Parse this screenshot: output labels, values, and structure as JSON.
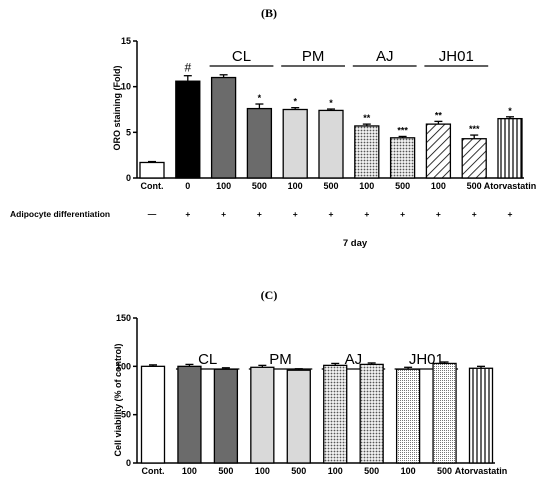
{
  "chart_data": [
    {
      "panel_label": "(B)",
      "type": "bar",
      "categories": [
        "Cont.",
        "0",
        "100",
        "500",
        "100",
        "500",
        "100",
        "500",
        "100",
        "500",
        "Atorvastatin"
      ],
      "values": [
        1.7,
        10.6,
        11.0,
        7.6,
        7.5,
        7.4,
        5.7,
        4.4,
        5.9,
        4.3,
        6.5
      ],
      "errors": [
        0.1,
        0.6,
        0.3,
        0.5,
        0.2,
        0.15,
        0.2,
        0.15,
        0.3,
        0.4,
        0.2
      ],
      "significance": [
        "",
        "#",
        "",
        "*",
        "*",
        "*",
        "**",
        "***",
        "**",
        "***",
        "*"
      ],
      "fills": [
        "white",
        "black",
        "darkgray",
        "darkgray",
        "lightgray",
        "lightgray",
        "dots",
        "dots",
        "diagonal",
        "diagonal",
        "vertical"
      ],
      "groups": [
        {
          "label": "CL",
          "first": 2,
          "last": 3
        },
        {
          "label": "PM",
          "first": 4,
          "last": 5
        },
        {
          "label": "AJ",
          "first": 6,
          "last": 7
        },
        {
          "label": "JH01",
          "first": 8,
          "last": 9
        }
      ],
      "xlabel": "",
      "ylabel": "ORO staining (Fold)",
      "ylim": [
        0,
        15
      ],
      "yticks": [
        0,
        5,
        10,
        15
      ],
      "condition_label": "Adipocyte differentiation",
      "condition_marks": [
        "—",
        "+",
        "+",
        "+",
        "+",
        "+",
        "+",
        "+",
        "+",
        "+",
        "+"
      ],
      "footer_label": "7 day"
    },
    {
      "panel_label": "(C)",
      "type": "bar",
      "categories": [
        "Cont.",
        "100",
        "500",
        "100",
        "500",
        "100",
        "500",
        "100",
        "500",
        "Atorvastatin"
      ],
      "values": [
        100,
        100,
        97,
        99,
        96,
        101,
        102,
        97,
        103,
        98
      ],
      "errors": [
        1.5,
        2,
        1.5,
        2,
        1.5,
        2,
        1.5,
        2,
        1.5,
        2
      ],
      "fills": [
        "white",
        "darkgray",
        "darkgray",
        "lightgray",
        "lightgray",
        "dots",
        "dots",
        "dots2",
        "dots2",
        "vertical"
      ],
      "groups": [
        {
          "label": "CL",
          "first": 1,
          "last": 2
        },
        {
          "label": "PM",
          "first": 3,
          "last": 4
        },
        {
          "label": "AJ",
          "first": 5,
          "last": 6
        },
        {
          "label": "JH01",
          "first": 7,
          "last": 8
        }
      ],
      "xlabel": "",
      "ylabel": "Cell viability (% of control)",
      "ylim": [
        0,
        150
      ],
      "yticks": [
        0,
        50,
        100,
        150
      ]
    }
  ]
}
